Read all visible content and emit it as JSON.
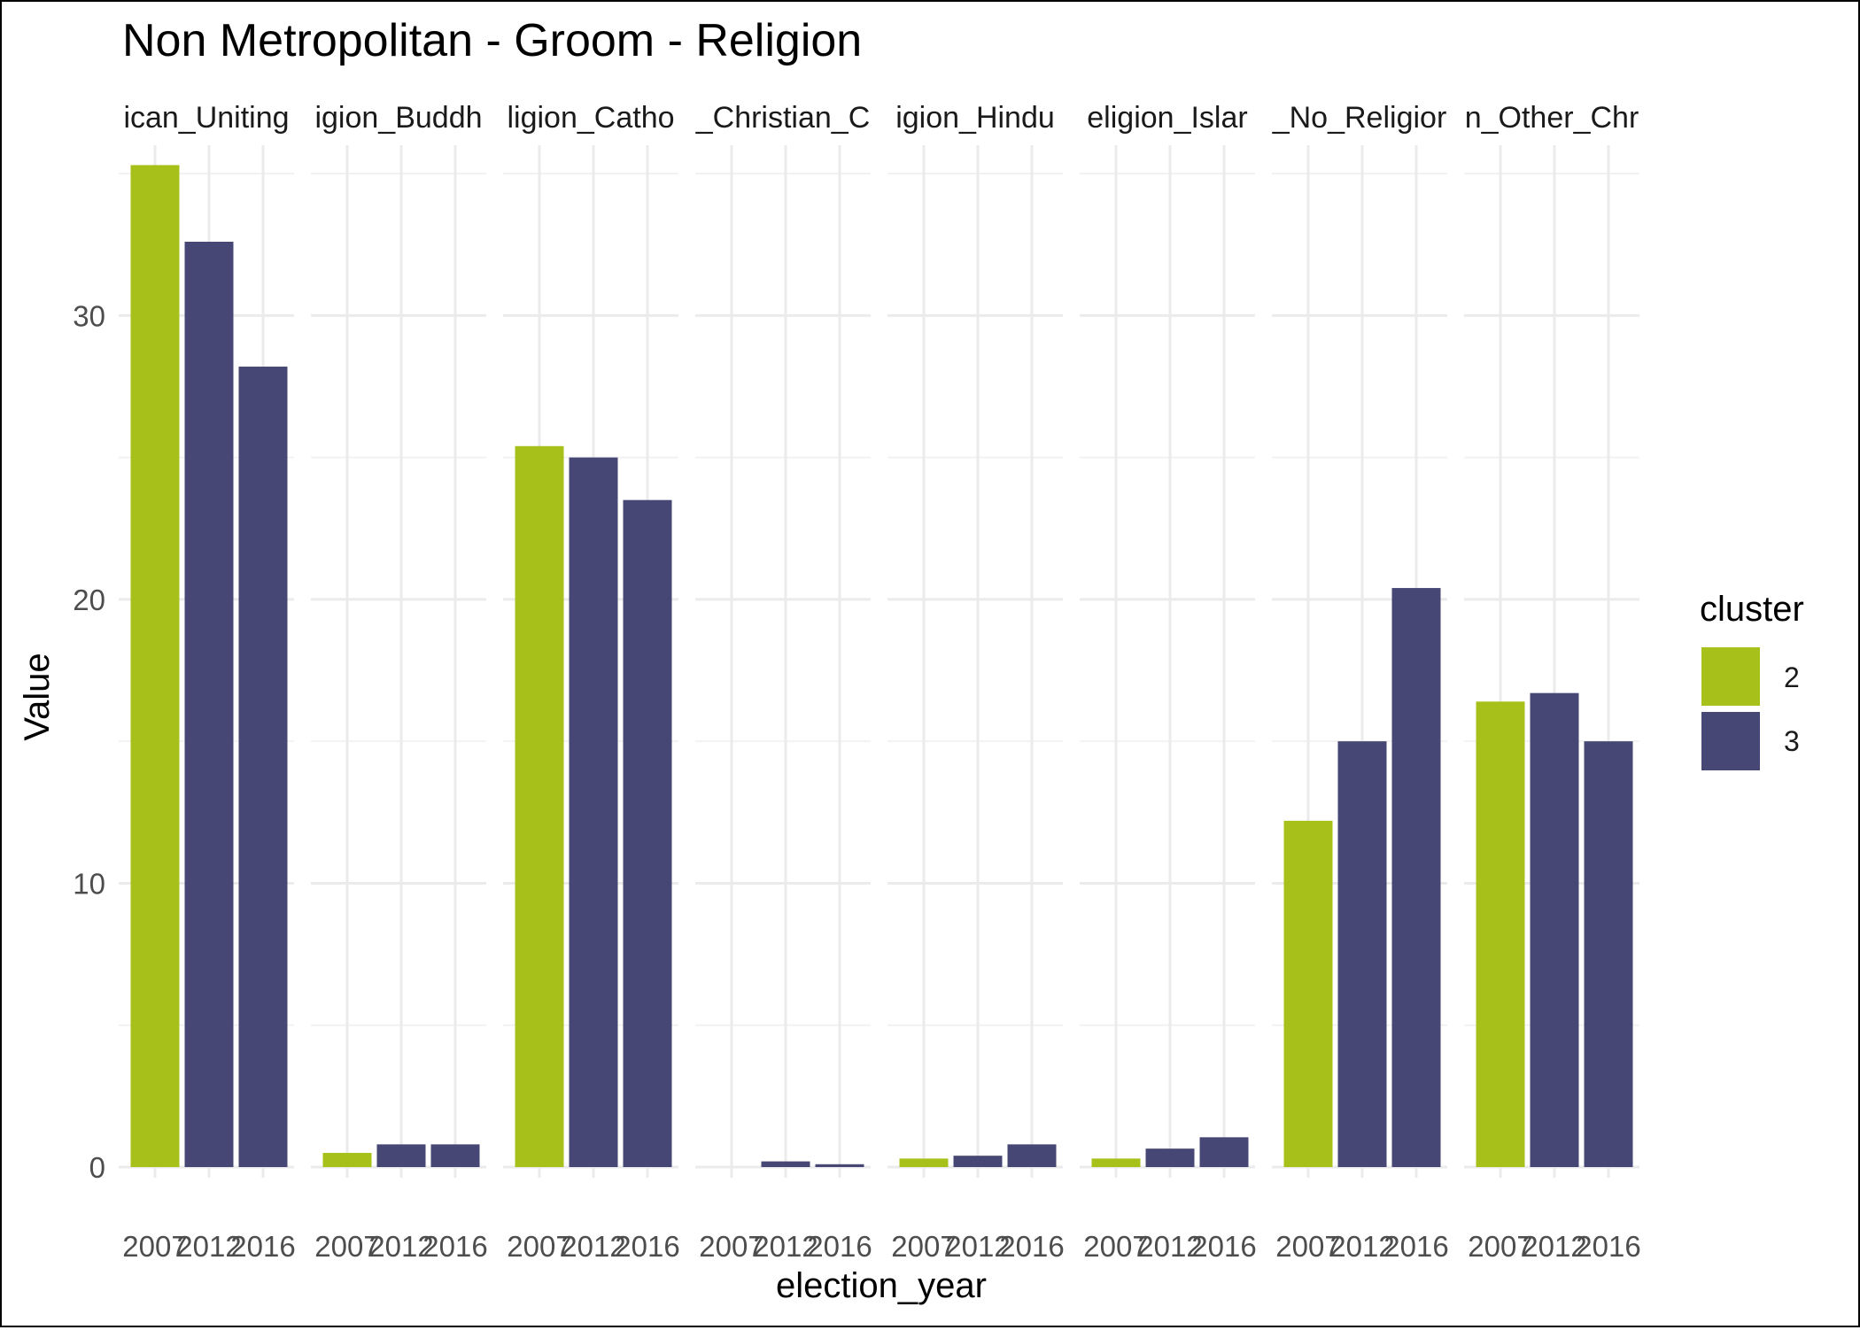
{
  "chart_data": {
    "type": "bar",
    "title": "Non Metropolitan - Groom - Religion",
    "xlabel": "election_year",
    "ylabel": "Value",
    "ylim": [
      0,
      36
    ],
    "y_ticks": [
      0,
      10,
      20,
      30
    ],
    "grid": true,
    "facet_labels": [
      "ican_Uniting",
      "igion_Buddh",
      "ligion_Catho",
      "_Christian_C",
      "igion_Hindu",
      "eligion_Islar",
      "_No_Religior",
      "n_Other_Chr"
    ],
    "x_categories": [
      "2007",
      "2012",
      "2016"
    ],
    "legend": {
      "title": "cluster",
      "position": "right",
      "items": [
        {
          "label": "2",
          "color": "#a8c11a"
        },
        {
          "label": "3",
          "color": "#474775"
        }
      ]
    },
    "panels": [
      {
        "values": [
          35.3,
          32.6,
          28.2
        ],
        "clusters": [
          "2",
          "3",
          "3"
        ]
      },
      {
        "values": [
          0.5,
          0.8,
          0.8
        ],
        "clusters": [
          "2",
          "3",
          "3"
        ]
      },
      {
        "values": [
          25.4,
          25.0,
          23.5
        ],
        "clusters": [
          "2",
          "3",
          "3"
        ]
      },
      {
        "values": [
          0.0,
          0.2,
          0.1
        ],
        "clusters": [
          "2",
          "3",
          "3"
        ]
      },
      {
        "values": [
          0.3,
          0.4,
          0.8
        ],
        "clusters": [
          "2",
          "3",
          "3"
        ]
      },
      {
        "values": [
          0.3,
          0.65,
          1.05
        ],
        "clusters": [
          "2",
          "3",
          "3"
        ]
      },
      {
        "values": [
          12.2,
          15.0,
          20.4
        ],
        "clusters": [
          "2",
          "3",
          "3"
        ]
      },
      {
        "values": [
          16.4,
          16.7,
          15.0
        ],
        "clusters": [
          "2",
          "3",
          "3"
        ]
      }
    ]
  }
}
